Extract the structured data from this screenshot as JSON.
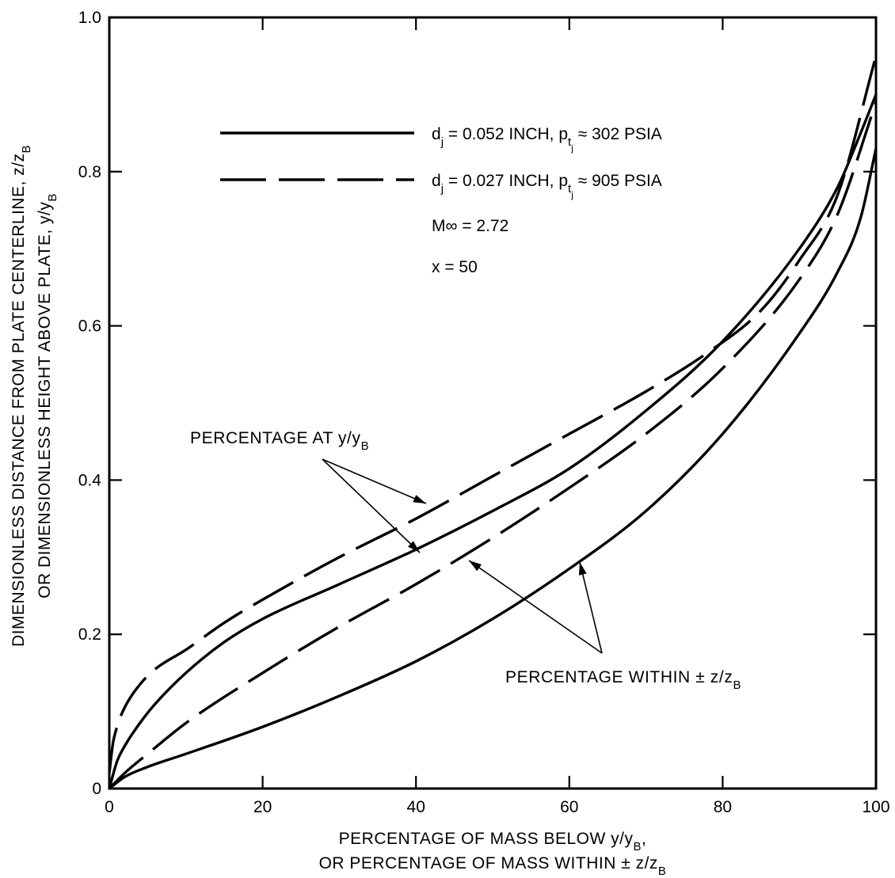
{
  "chart_data": {
    "type": "line",
    "xlabel_lines": [
      "PERCENTAGE OF MASS BELOW y/y",
      "OR PERCENTAGE OF MASS WITHIN ± z/z"
    ],
    "xlabel_suffix": [
      ",",
      ""
    ],
    "ylabel_lines": [
      "DIMENSIONLESS DISTANCE FROM PLATE CENTERLINE, z/z",
      "OR DIMENSIONLESS HEIGHT ABOVE PLATE, y/y"
    ],
    "label_subscript": "B",
    "xlim": [
      0,
      100
    ],
    "ylim": [
      0,
      1.0
    ],
    "x_ticks": [
      "0",
      "20",
      "40",
      "60",
      "80",
      "100"
    ],
    "y_ticks": [
      "0",
      "0.2",
      "0.4",
      "0.6",
      "0.8",
      "1.0"
    ],
    "grid": false,
    "legend": {
      "placement": "top-left",
      "entries": [
        {
          "style": "solid",
          "d_label": "d",
          "d_sub": "j",
          "d_value": "= 0.052 INCH,",
          "p_label": "p",
          "p_sub": "t",
          "p_subsub": "j",
          "p_value": "≈ 302 PSIA"
        },
        {
          "style": "dashed",
          "d_label": "d",
          "d_sub": "j",
          "d_value": "= 0.027 INCH,",
          "p_label": "p",
          "p_sub": "t",
          "p_subsub": "j",
          "p_value": "≈ 905 PSIA"
        }
      ],
      "conditions": [
        "M∞ = 2.72",
        "x = 50"
      ]
    },
    "series": [
      {
        "style": "solid",
        "quantity": "y/yB",
        "x": [
          0,
          1,
          2,
          4,
          6,
          10,
          15,
          20,
          30,
          40,
          50,
          60,
          70,
          80,
          90,
          95,
          98,
          100
        ],
        "y": [
          0,
          0.035,
          0.055,
          0.085,
          0.11,
          0.15,
          0.19,
          0.22,
          0.265,
          0.31,
          0.36,
          0.415,
          0.49,
          0.58,
          0.7,
          0.78,
          0.85,
          0.9
        ]
      },
      {
        "style": "dashed",
        "quantity": "y/yB",
        "x": [
          0,
          0.5,
          1,
          2,
          4,
          6,
          10,
          15,
          20,
          30,
          40,
          50,
          60,
          70,
          78,
          85,
          90,
          95,
          100
        ],
        "y": [
          0.02,
          0.06,
          0.08,
          0.105,
          0.135,
          0.155,
          0.18,
          0.215,
          0.245,
          0.3,
          0.35,
          0.405,
          0.46,
          0.515,
          0.565,
          0.62,
          0.685,
          0.77,
          0.95
        ]
      },
      {
        "style": "solid",
        "quantity": "z/zB",
        "x": [
          0,
          2,
          5,
          10,
          20,
          30,
          40,
          50,
          60,
          70,
          80,
          90,
          95,
          98,
          100
        ],
        "y": [
          0,
          0.015,
          0.028,
          0.045,
          0.08,
          0.12,
          0.165,
          0.22,
          0.285,
          0.36,
          0.46,
          0.59,
          0.67,
          0.74,
          0.83
        ]
      },
      {
        "style": "dashed",
        "quantity": "z/zB",
        "x": [
          0,
          2,
          5,
          10,
          20,
          30,
          40,
          50,
          60,
          70,
          80,
          90,
          95,
          100
        ],
        "y": [
          0,
          0.02,
          0.045,
          0.085,
          0.15,
          0.21,
          0.265,
          0.325,
          0.39,
          0.46,
          0.545,
          0.66,
          0.745,
          0.89
        ]
      }
    ],
    "annotations": [
      {
        "text": "PERCENTAGE AT y/y",
        "sub": "B"
      },
      {
        "text": "PERCENTAGE WITHIN ± z/z",
        "sub": "B"
      }
    ]
  }
}
